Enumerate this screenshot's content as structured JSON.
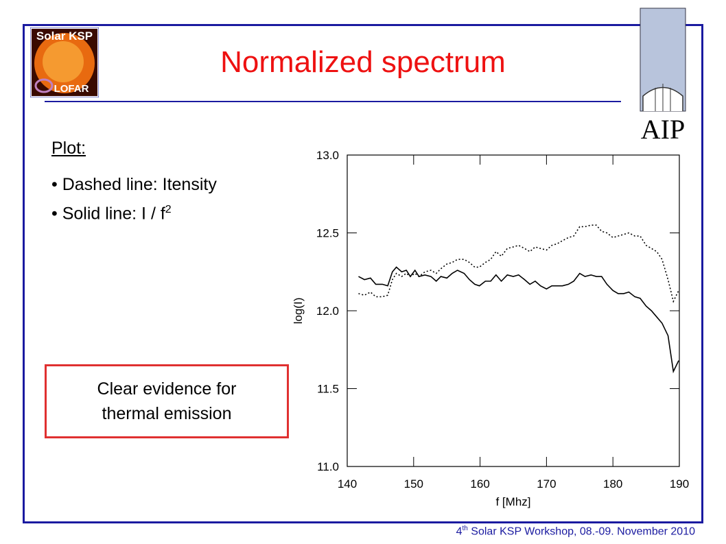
{
  "header": {
    "title": "Normalized spectrum"
  },
  "logos": {
    "left_top": "Solar KSP",
    "left_bottom": "LOFAR",
    "right": "AIP"
  },
  "notes": {
    "heading": "Plot:",
    "bullets": [
      "Dashed line: Itensity",
      "Solid line: I / f"
    ],
    "bullet_superscript": "2",
    "box": [
      "Clear evidence for",
      "thermal emission"
    ]
  },
  "footer": {
    "number": "4",
    "suffix": "th",
    "text": "Solar KSP Workshop, 08.-09. November 2010"
  },
  "chart_data": {
    "type": "line",
    "xlabel": "f [Mhz]",
    "ylabel": "log(I)",
    "xlim": [
      140,
      190
    ],
    "ylim": [
      11.0,
      13.0
    ],
    "xticks": [
      140,
      150,
      160,
      170,
      180,
      190
    ],
    "yticks": [
      {
        "value": 11,
        "label": "11.0"
      },
      11.5,
      {
        "value": 12,
        "label": "12.0"
      },
      12.5,
      {
        "value": 13,
        "label": "13.0"
      }
    ],
    "x": [
      141.7,
      142.6,
      143.5,
      144.3,
      145.3,
      146.1,
      146.8,
      147.4,
      148.2,
      148.9,
      149.5,
      150.2,
      150.8,
      151.7,
      152.6,
      153.4,
      154.1,
      155.0,
      155.8,
      156.6,
      157.6,
      158.4,
      159.2,
      159.9,
      160.8,
      161.6,
      162.4,
      163.2,
      164.1,
      165.0,
      165.8,
      166.7,
      167.5,
      168.3,
      169.1,
      170.0,
      170.8,
      171.6,
      172.4,
      173.3,
      174.1,
      175.0,
      175.8,
      176.7,
      177.5,
      178.3,
      179.1,
      180.0,
      180.8,
      181.6,
      182.4,
      183.3,
      184.1,
      185.0,
      185.8,
      186.6,
      187.4,
      188.3,
      189.1,
      189.9
    ],
    "series": [
      {
        "color": "#000000",
        "dash": "dotted",
        "values": [
          12.11,
          12.1,
          12.12,
          12.09,
          12.09,
          12.1,
          12.2,
          12.24,
          12.22,
          12.24,
          12.22,
          12.24,
          12.22,
          12.25,
          12.26,
          12.24,
          12.27,
          12.3,
          12.31,
          12.33,
          12.33,
          12.31,
          12.28,
          12.28,
          12.31,
          12.33,
          12.38,
          12.35,
          12.4,
          12.41,
          12.42,
          12.4,
          12.38,
          12.41,
          12.4,
          12.39,
          12.42,
          12.43,
          12.45,
          12.47,
          12.48,
          12.54,
          12.54,
          12.55,
          12.55,
          12.51,
          12.5,
          12.47,
          12.48,
          12.49,
          12.5,
          12.48,
          12.48,
          12.42,
          12.4,
          12.38,
          12.33,
          12.2,
          12.06,
          12.13
        ]
      },
      {
        "color": "#000000",
        "dash": "solid",
        "values": [
          12.22,
          12.2,
          12.21,
          12.17,
          12.17,
          12.16,
          12.25,
          12.28,
          12.25,
          12.26,
          12.22,
          12.26,
          12.22,
          12.23,
          12.22,
          12.19,
          12.22,
          12.21,
          12.24,
          12.26,
          12.24,
          12.2,
          12.17,
          12.16,
          12.19,
          12.19,
          12.23,
          12.19,
          12.23,
          12.22,
          12.23,
          12.2,
          12.17,
          12.19,
          12.16,
          12.14,
          12.16,
          12.16,
          12.16,
          12.17,
          12.19,
          12.24,
          12.22,
          12.23,
          12.22,
          12.22,
          12.17,
          12.13,
          12.11,
          12.11,
          12.12,
          12.09,
          12.08,
          12.03,
          12.0,
          11.96,
          11.92,
          11.84,
          11.61,
          11.68
        ]
      }
    ]
  }
}
